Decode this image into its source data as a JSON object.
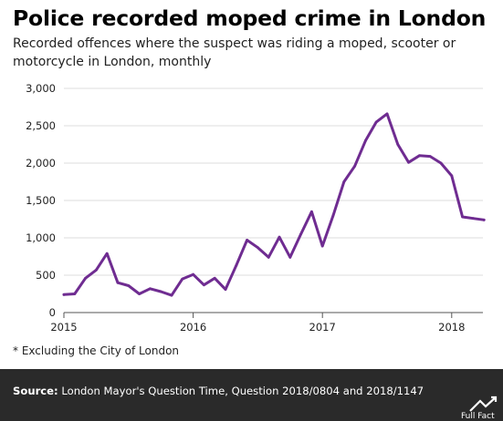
{
  "header": {
    "title": "Police recorded moped crime in London",
    "subtitle": "Recorded offences where the suspect was riding a moped, scooter or motorcycle in London, monthly"
  },
  "footnote": "* Excluding the City of London",
  "footer": {
    "source_label": "Source:",
    "source_text": "London Mayor's Question Time, Question 2018/0804 and 2018/1147",
    "logo_text": "Full Fact"
  },
  "colors": {
    "line": "#6f2c91",
    "footer_bg": "#2a2a2a"
  },
  "chart_data": {
    "type": "line",
    "title": "Police recorded moped crime in London",
    "xlabel": "",
    "ylabel": "",
    "ylim": [
      0,
      3000
    ],
    "yticks": [
      0,
      500,
      1000,
      1500,
      2000,
      2500,
      3000
    ],
    "ytick_labels": [
      "0",
      "500",
      "1,000",
      "1,500",
      "2,000",
      "2,500",
      "3,000"
    ],
    "xticks": [
      "2015",
      "2016",
      "2017",
      "2018"
    ],
    "grid": true,
    "series": [
      {
        "start": "2015-01",
        "values": [
          240,
          250,
          460,
          570,
          790,
          400,
          360,
          250,
          320,
          280,
          230,
          450,
          510,
          370,
          460,
          310,
          630,
          970,
          870,
          740,
          1010,
          740,
          1050,
          1350,
          890,
          1300,
          1750,
          1960,
          2300,
          2550,
          2660,
          2250,
          2010,
          2100,
          2090,
          2000,
          1830,
          1280,
          1260,
          1240
        ]
      }
    ]
  }
}
